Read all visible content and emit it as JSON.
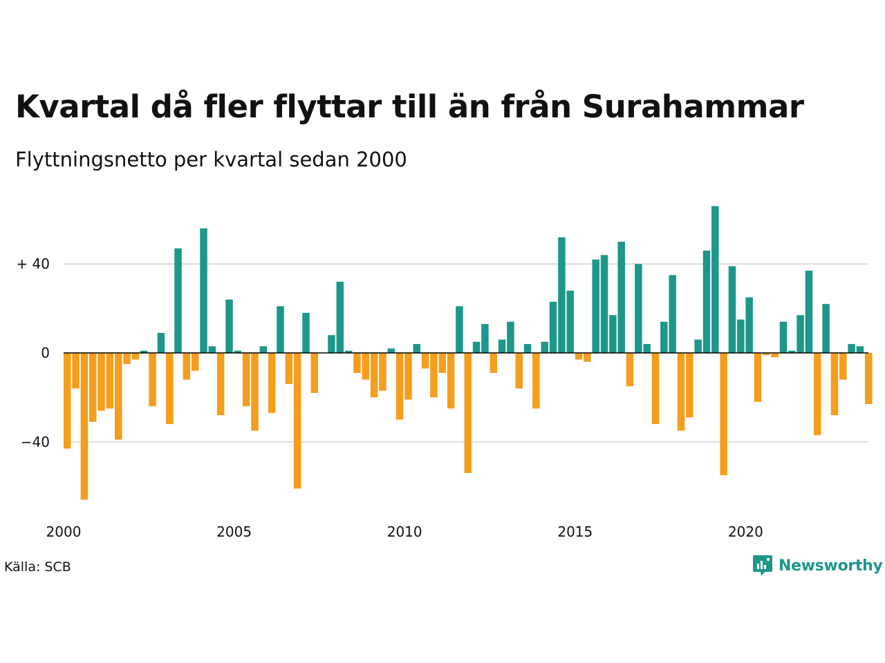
{
  "title": "Kvartal då fler flyttar till än från Surahammar",
  "subtitle": "Flyttningsnetto per kvartal sedan 2000",
  "source": "Källa: SCB",
  "brand": {
    "name": "Newsworthy",
    "icon": "newsworthy-logo-icon",
    "color": "#1d978a"
  },
  "colors": {
    "positive": "#1d978a",
    "negative": "#f59d1d",
    "grid": "#dddddd",
    "zero_line": "#000000"
  },
  "chart_data": {
    "type": "bar",
    "title": "Kvartal då fler flyttar till än från Surahammar",
    "subtitle": "Flyttningsnetto per kvartal sedan 2000",
    "xlabel": "",
    "ylabel": "",
    "ylim": [
      -70,
      66
    ],
    "xlim": [
      2000,
      2023.75
    ],
    "yticks": [
      {
        "value": 40,
        "label": "+ 40"
      },
      {
        "value": 0,
        "label": "0"
      },
      {
        "value": -40,
        "label": "−40"
      }
    ],
    "xticks": [
      {
        "value": 2000,
        "label": "2000"
      },
      {
        "value": 2005,
        "label": "2005"
      },
      {
        "value": 2010,
        "label": "2010"
      },
      {
        "value": 2015,
        "label": "2015"
      },
      {
        "value": 2020,
        "label": "2020"
      }
    ],
    "grid": true,
    "legend": "none",
    "categories": [
      "2000 Q1",
      "2000 Q2",
      "2000 Q3",
      "2000 Q4",
      "2001 Q1",
      "2001 Q2",
      "2001 Q3",
      "2001 Q4",
      "2002 Q1",
      "2002 Q2",
      "2002 Q3",
      "2002 Q4",
      "2003 Q1",
      "2003 Q2",
      "2003 Q3",
      "2003 Q4",
      "2004 Q1",
      "2004 Q2",
      "2004 Q3",
      "2004 Q4",
      "2005 Q1",
      "2005 Q2",
      "2005 Q3",
      "2005 Q4",
      "2006 Q1",
      "2006 Q2",
      "2006 Q3",
      "2006 Q4",
      "2007 Q1",
      "2007 Q2",
      "2007 Q3",
      "2007 Q4",
      "2008 Q1",
      "2008 Q2",
      "2008 Q3",
      "2008 Q4",
      "2009 Q1",
      "2009 Q2",
      "2009 Q3",
      "2009 Q4",
      "2010 Q1",
      "2010 Q2",
      "2010 Q3",
      "2010 Q4",
      "2011 Q1",
      "2011 Q2",
      "2011 Q3",
      "2011 Q4",
      "2012 Q1",
      "2012 Q2",
      "2012 Q3",
      "2012 Q4",
      "2013 Q1",
      "2013 Q2",
      "2013 Q3",
      "2013 Q4",
      "2014 Q1",
      "2014 Q2",
      "2014 Q3",
      "2014 Q4",
      "2015 Q1",
      "2015 Q2",
      "2015 Q3",
      "2015 Q4",
      "2016 Q1",
      "2016 Q2",
      "2016 Q3",
      "2016 Q4",
      "2017 Q1",
      "2017 Q2",
      "2017 Q3",
      "2017 Q4",
      "2018 Q1",
      "2018 Q2",
      "2018 Q3",
      "2018 Q4",
      "2019 Q1",
      "2019 Q2",
      "2019 Q3",
      "2019 Q4",
      "2020 Q1",
      "2020 Q2",
      "2020 Q3",
      "2020 Q4",
      "2021 Q1",
      "2021 Q2",
      "2021 Q3",
      "2021 Q4",
      "2022 Q1",
      "2022 Q2",
      "2022 Q3",
      "2022 Q4",
      "2023 Q1",
      "2023 Q2",
      "2023 Q3",
      "2023 Q4"
    ],
    "values": [
      -43,
      -16,
      -66,
      -31,
      -26,
      -25,
      -39,
      -5,
      -3,
      1,
      -24,
      9,
      -32,
      47,
      -12,
      -8,
      56,
      3,
      -28,
      24,
      1,
      -24,
      -35,
      3,
      -27,
      21,
      -14,
      -61,
      18,
      -18,
      0,
      8,
      32,
      1,
      -9,
      -12,
      -20,
      -17,
      2,
      -30,
      -21,
      4,
      -7,
      -20,
      -9,
      -25,
      21,
      -54,
      5,
      13,
      -9,
      6,
      14,
      -16,
      4,
      -25,
      5,
      23,
      52,
      28,
      -3,
      -4,
      42,
      44,
      17,
      50,
      -15,
      40,
      4,
      -32,
      14,
      35,
      -35,
      -29,
      6,
      46,
      66,
      -55,
      39,
      15,
      25,
      -22,
      -1,
      -2,
      14,
      1,
      17,
      37,
      -37,
      22,
      -28,
      -12,
      4,
      3,
      -23,
      0
    ]
  }
}
